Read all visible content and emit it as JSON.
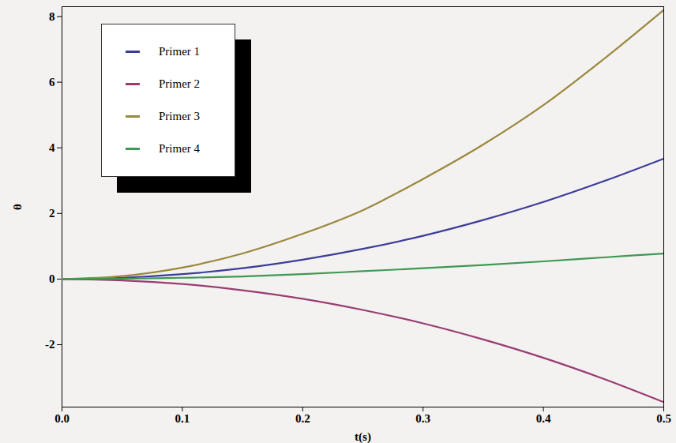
{
  "chart_data": {
    "type": "line",
    "x_label": "t(s)",
    "y_label": "θ",
    "x": [
      0,
      0.05,
      0.1,
      0.15,
      0.2,
      0.25,
      0.3,
      0.35,
      0.4,
      0.45,
      0.5
    ],
    "series": [
      {
        "name": "Primer 1",
        "color": "#3d3d99",
        "values": [
          0,
          0.04,
          0.15,
          0.33,
          0.59,
          0.92,
          1.32,
          1.8,
          2.35,
          2.98,
          3.67
        ]
      },
      {
        "name": "Primer 2",
        "color": "#993d71",
        "values": [
          0,
          -0.04,
          -0.15,
          -0.34,
          -0.6,
          -0.94,
          -1.35,
          -1.84,
          -2.4,
          -3.04,
          -3.75
        ]
      },
      {
        "name": "Primer 3",
        "color": "#99893d",
        "values": [
          0,
          0.09,
          0.35,
          0.78,
          1.38,
          2.1,
          3.05,
          4.1,
          5.3,
          6.7,
          8.2
        ]
      },
      {
        "name": "Primer 4",
        "color": "#3d9954",
        "values": [
          0,
          0.01,
          0.04,
          0.08,
          0.15,
          0.24,
          0.33,
          0.43,
          0.54,
          0.66,
          0.78
        ]
      }
    ],
    "xlim": [
      0,
      0.5
    ],
    "xticks": [
      {
        "value": 0,
        "label": "0.0"
      },
      0.1,
      0.2,
      0.3,
      0.4,
      0.5
    ],
    "ylim": [
      -3.9,
      8.3
    ],
    "yticks": [
      -2,
      0,
      2,
      4,
      6,
      8
    ],
    "grid": false,
    "legend": "top-left"
  }
}
